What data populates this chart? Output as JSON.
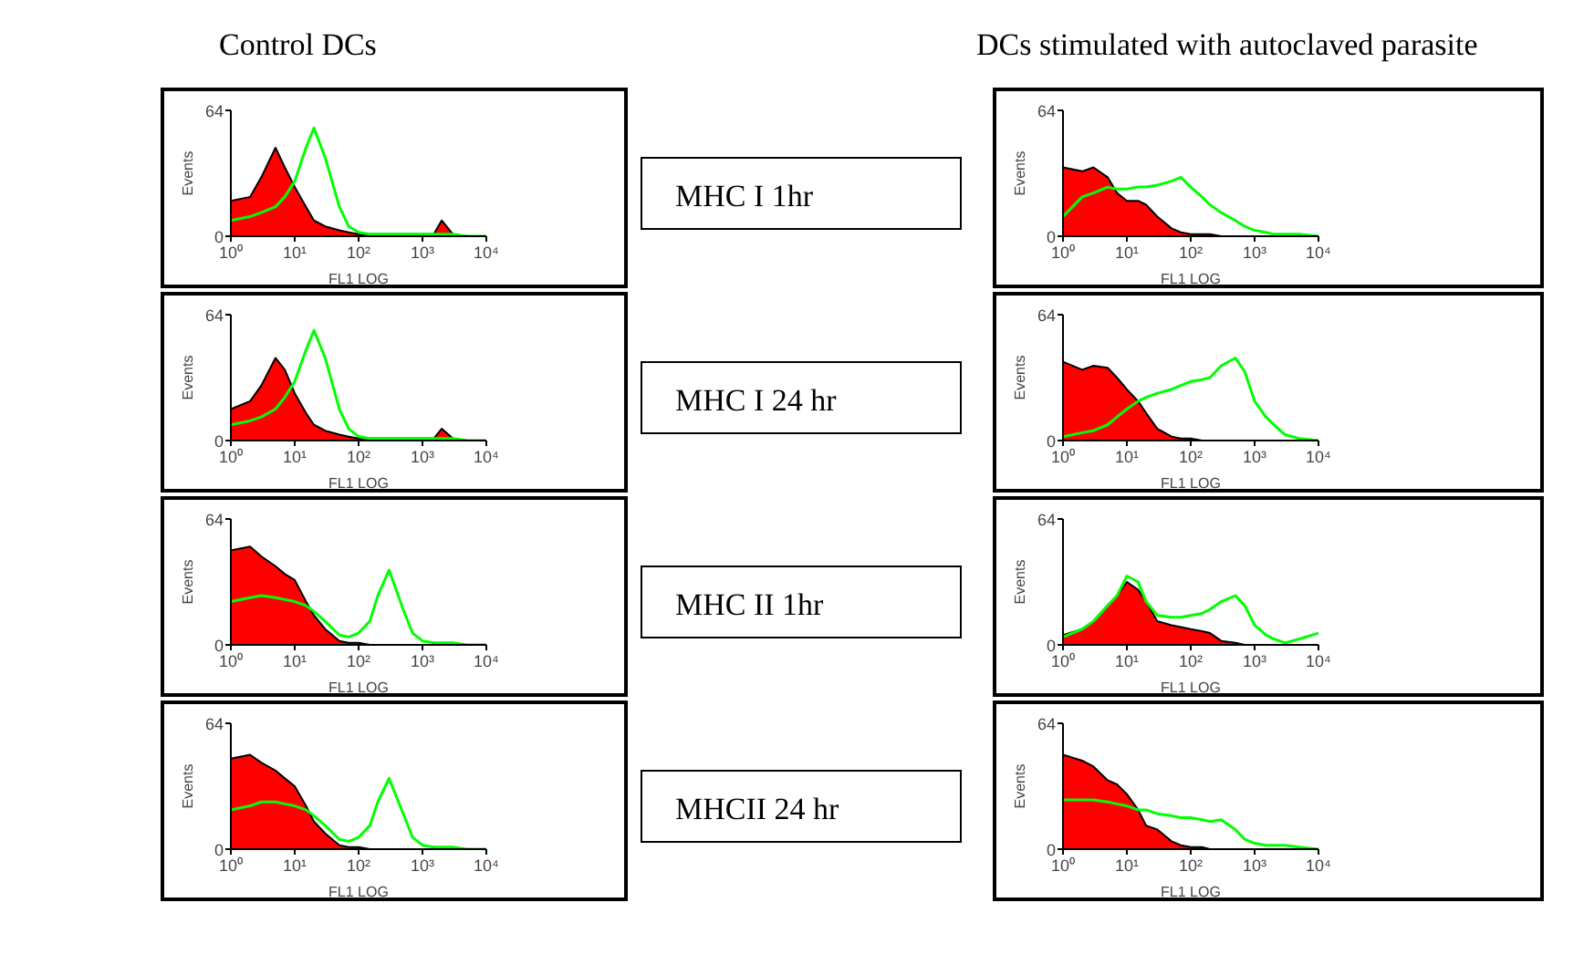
{
  "chart_data": [
    {
      "type": "area",
      "title": "Control DCs",
      "xlabel": "FL1 LOG",
      "ylabel": "Events",
      "log": "x",
      "xlim": [
        1,
        10000
      ],
      "ylim": [
        0,
        64
      ],
      "xticks": [
        {
          "value": 1,
          "label": "10⁰"
        },
        {
          "value": 10,
          "label": "10¹"
        },
        {
          "value": 100,
          "label": "10²"
        },
        {
          "value": 1000,
          "label": "10³"
        },
        {
          "value": 10000,
          "label": "10⁴"
        }
      ],
      "yticks": [
        0,
        64
      ],
      "grid": false,
      "x": [
        1,
        2,
        3,
        5,
        7,
        10,
        15,
        20,
        30,
        50,
        70,
        100,
        150,
        200,
        300,
        500,
        700,
        1000,
        1500,
        2000,
        3000,
        5000,
        10000
      ],
      "series": [
        {
          "color": "#ff0000",
          "values": [
            18,
            20,
            30,
            45,
            35,
            25,
            15,
            8,
            5,
            3,
            2,
            1,
            1,
            1,
            1,
            1,
            1,
            1,
            1,
            8,
            1,
            0,
            0
          ]
        },
        {
          "type": "line",
          "color": "#00ff00",
          "values": [
            8,
            10,
            12,
            15,
            20,
            28,
            45,
            55,
            40,
            15,
            5,
            2,
            1,
            1,
            1,
            1,
            1,
            1,
            1,
            1,
            1,
            0,
            0
          ]
        }
      ]
    },
    {
      "type": "area",
      "title": "DCs stimulated with autoclaved parasite",
      "annotations": [
        "MHC I 1hr"
      ],
      "xlabel": "FL1 LOG",
      "ylabel": "Events",
      "log": "x",
      "xlim": [
        1,
        10000
      ],
      "ylim": [
        0,
        64
      ],
      "xticks": [
        {
          "value": 1,
          "label": "10⁰"
        },
        {
          "value": 10,
          "label": "10¹"
        },
        {
          "value": 100,
          "label": "10²"
        },
        {
          "value": 1000,
          "label": "10³"
        },
        {
          "value": 10000,
          "label": "10⁴"
        }
      ],
      "yticks": [
        0,
        64
      ],
      "grid": false,
      "x": [
        1,
        2,
        3,
        5,
        7,
        10,
        15,
        20,
        30,
        50,
        70,
        100,
        150,
        200,
        300,
        500,
        700,
        1000,
        1500,
        2000,
        3000,
        5000,
        10000
      ],
      "series": [
        {
          "color": "#ff0000",
          "values": [
            35,
            33,
            35,
            30,
            22,
            18,
            18,
            16,
            10,
            4,
            2,
            1,
            1,
            1,
            0,
            0,
            0,
            0,
            0,
            0,
            0,
            0,
            0
          ]
        },
        {
          "type": "line",
          "color": "#00ff00",
          "values": [
            10,
            20,
            22,
            25,
            24,
            24,
            25,
            25,
            26,
            28,
            30,
            25,
            20,
            16,
            12,
            8,
            5,
            3,
            2,
            1,
            1,
            1,
            0
          ]
        }
      ]
    },
    {
      "type": "area",
      "xlabel": "FL1 LOG",
      "ylabel": "Events",
      "log": "x",
      "xlim": [
        1,
        10000
      ],
      "ylim": [
        0,
        64
      ],
      "xticks": [
        {
          "value": 1,
          "label": "10⁰"
        },
        {
          "value": 10,
          "label": "10¹"
        },
        {
          "value": 100,
          "label": "10²"
        },
        {
          "value": 1000,
          "label": "10³"
        },
        {
          "value": 10000,
          "label": "10⁴"
        }
      ],
      "yticks": [
        0,
        64
      ],
      "grid": false,
      "x": [
        1,
        2,
        3,
        5,
        7,
        10,
        15,
        20,
        30,
        50,
        70,
        100,
        150,
        200,
        300,
        500,
        700,
        1000,
        1500,
        2000,
        3000,
        5000,
        10000
      ],
      "series": [
        {
          "color": "#ff0000",
          "values": [
            16,
            20,
            28,
            42,
            36,
            24,
            14,
            8,
            5,
            3,
            2,
            1,
            1,
            1,
            1,
            1,
            1,
            1,
            1,
            6,
            1,
            0,
            0
          ]
        },
        {
          "type": "line",
          "color": "#00ff00",
          "values": [
            8,
            10,
            12,
            16,
            22,
            30,
            46,
            56,
            42,
            16,
            6,
            2,
            1,
            1,
            1,
            1,
            1,
            1,
            1,
            1,
            1,
            0,
            0
          ]
        }
      ]
    },
    {
      "type": "area",
      "annotations": [
        "MHC I 24 hr"
      ],
      "xlabel": "FL1 LOG",
      "ylabel": "Events",
      "log": "x",
      "xlim": [
        1,
        10000
      ],
      "ylim": [
        0,
        64
      ],
      "xticks": [
        {
          "value": 1,
          "label": "10⁰"
        },
        {
          "value": 10,
          "label": "10¹"
        },
        {
          "value": 100,
          "label": "10²"
        },
        {
          "value": 1000,
          "label": "10³"
        },
        {
          "value": 10000,
          "label": "10⁴"
        }
      ],
      "yticks": [
        0,
        64
      ],
      "grid": false,
      "x": [
        1,
        2,
        3,
        5,
        7,
        10,
        15,
        20,
        30,
        50,
        70,
        100,
        150,
        200,
        300,
        500,
        700,
        1000,
        1500,
        2000,
        3000,
        5000,
        10000
      ],
      "series": [
        {
          "color": "#ff0000",
          "values": [
            40,
            36,
            38,
            37,
            32,
            26,
            20,
            14,
            6,
            2,
            1,
            1,
            0,
            0,
            0,
            0,
            0,
            0,
            0,
            0,
            0,
            0,
            0
          ]
        },
        {
          "type": "line",
          "color": "#00ff00",
          "values": [
            2,
            4,
            5,
            8,
            12,
            16,
            20,
            22,
            24,
            26,
            28,
            30,
            31,
            32,
            38,
            42,
            35,
            20,
            12,
            8,
            3,
            1,
            0
          ]
        }
      ]
    },
    {
      "type": "area",
      "xlabel": "FL1 LOG",
      "ylabel": "Events",
      "log": "x",
      "xlim": [
        1,
        10000
      ],
      "ylim": [
        0,
        64
      ],
      "xticks": [
        {
          "value": 1,
          "label": "10⁰"
        },
        {
          "value": 10,
          "label": "10¹"
        },
        {
          "value": 100,
          "label": "10²"
        },
        {
          "value": 1000,
          "label": "10³"
        },
        {
          "value": 10000,
          "label": "10⁴"
        }
      ],
      "yticks": [
        0,
        64
      ],
      "grid": false,
      "x": [
        1,
        2,
        3,
        5,
        7,
        10,
        15,
        20,
        30,
        50,
        70,
        100,
        150,
        200,
        300,
        500,
        700,
        1000,
        1500,
        2000,
        3000,
        5000,
        10000
      ],
      "series": [
        {
          "color": "#ff0000",
          "values": [
            48,
            50,
            45,
            40,
            36,
            33,
            22,
            15,
            8,
            2,
            1,
            1,
            0,
            0,
            0,
            0,
            0,
            0,
            0,
            0,
            0,
            0,
            0
          ]
        },
        {
          "type": "line",
          "color": "#00ff00",
          "values": [
            22,
            24,
            25,
            24,
            23,
            22,
            20,
            17,
            12,
            5,
            4,
            6,
            12,
            25,
            38,
            18,
            6,
            2,
            1,
            1,
            1,
            0,
            0
          ]
        }
      ]
    },
    {
      "type": "area",
      "annotations": [
        "MHC II 1hr"
      ],
      "xlabel": "FL1 LOG",
      "ylabel": "Events",
      "log": "x",
      "xlim": [
        1,
        10000
      ],
      "ylim": [
        0,
        64
      ],
      "xticks": [
        {
          "value": 1,
          "label": "10⁰"
        },
        {
          "value": 10,
          "label": "10¹"
        },
        {
          "value": 100,
          "label": "10²"
        },
        {
          "value": 1000,
          "label": "10³"
        },
        {
          "value": 10000,
          "label": "10⁴"
        }
      ],
      "yticks": [
        0,
        64
      ],
      "grid": false,
      "x": [
        1,
        2,
        3,
        5,
        7,
        10,
        15,
        20,
        30,
        50,
        70,
        100,
        150,
        200,
        300,
        500,
        700,
        1000,
        1500,
        2000,
        3000,
        5000,
        10000
      ],
      "series": [
        {
          "color": "#ff0000",
          "values": [
            5,
            8,
            12,
            20,
            25,
            32,
            28,
            22,
            12,
            10,
            9,
            8,
            7,
            6,
            2,
            1,
            0,
            0,
            0,
            0,
            0,
            0,
            0
          ]
        },
        {
          "type": "line",
          "color": "#00ff00",
          "values": [
            4,
            8,
            12,
            20,
            25,
            35,
            32,
            22,
            15,
            14,
            14,
            15,
            16,
            18,
            22,
            25,
            20,
            10,
            5,
            3,
            1,
            3,
            6
          ]
        }
      ]
    },
    {
      "type": "area",
      "xlabel": "FL1 LOG",
      "ylabel": "Events",
      "log": "x",
      "xlim": [
        1,
        10000
      ],
      "ylim": [
        0,
        64
      ],
      "xticks": [
        {
          "value": 1,
          "label": "10⁰"
        },
        {
          "value": 10,
          "label": "10¹"
        },
        {
          "value": 100,
          "label": "10²"
        },
        {
          "value": 1000,
          "label": "10³"
        },
        {
          "value": 10000,
          "label": "10⁴"
        }
      ],
      "yticks": [
        0,
        64
      ],
      "grid": false,
      "x": [
        1,
        2,
        3,
        5,
        7,
        10,
        15,
        20,
        30,
        50,
        70,
        100,
        150,
        200,
        300,
        500,
        700,
        1000,
        1500,
        2000,
        3000,
        5000,
        10000
      ],
      "series": [
        {
          "color": "#ff0000",
          "values": [
            46,
            48,
            44,
            40,
            36,
            32,
            22,
            14,
            8,
            2,
            1,
            1,
            0,
            0,
            0,
            0,
            0,
            0,
            0,
            0,
            0,
            0,
            0
          ]
        },
        {
          "type": "line",
          "color": "#00ff00",
          "values": [
            20,
            22,
            24,
            24,
            23,
            22,
            20,
            17,
            12,
            5,
            4,
            6,
            12,
            24,
            36,
            18,
            6,
            2,
            1,
            1,
            1,
            0,
            0
          ]
        }
      ]
    },
    {
      "type": "area",
      "annotations": [
        "MHCII 24 hr"
      ],
      "xlabel": "FL1 LOG",
      "ylabel": "Events",
      "log": "x",
      "xlim": [
        1,
        10000
      ],
      "ylim": [
        0,
        64
      ],
      "xticks": [
        {
          "value": 1,
          "label": "10⁰"
        },
        {
          "value": 10,
          "label": "10¹"
        },
        {
          "value": 100,
          "label": "10²"
        },
        {
          "value": 1000,
          "label": "10³"
        },
        {
          "value": 10000,
          "label": "10⁴"
        }
      ],
      "yticks": [
        0,
        64
      ],
      "grid": false,
      "x": [
        1,
        2,
        3,
        5,
        7,
        10,
        15,
        20,
        30,
        50,
        70,
        100,
        150,
        200,
        300,
        500,
        700,
        1000,
        1500,
        2000,
        3000,
        5000,
        10000
      ],
      "series": [
        {
          "color": "#ff0000",
          "values": [
            48,
            45,
            42,
            35,
            33,
            28,
            20,
            12,
            10,
            4,
            2,
            1,
            1,
            0,
            0,
            0,
            0,
            0,
            0,
            0,
            0,
            0,
            0
          ]
        },
        {
          "type": "line",
          "color": "#00ff00",
          "values": [
            25,
            25,
            25,
            24,
            23,
            22,
            20,
            20,
            18,
            17,
            16,
            16,
            15,
            14,
            15,
            10,
            5,
            3,
            2,
            2,
            2,
            1,
            0
          ]
        }
      ]
    }
  ]
}
